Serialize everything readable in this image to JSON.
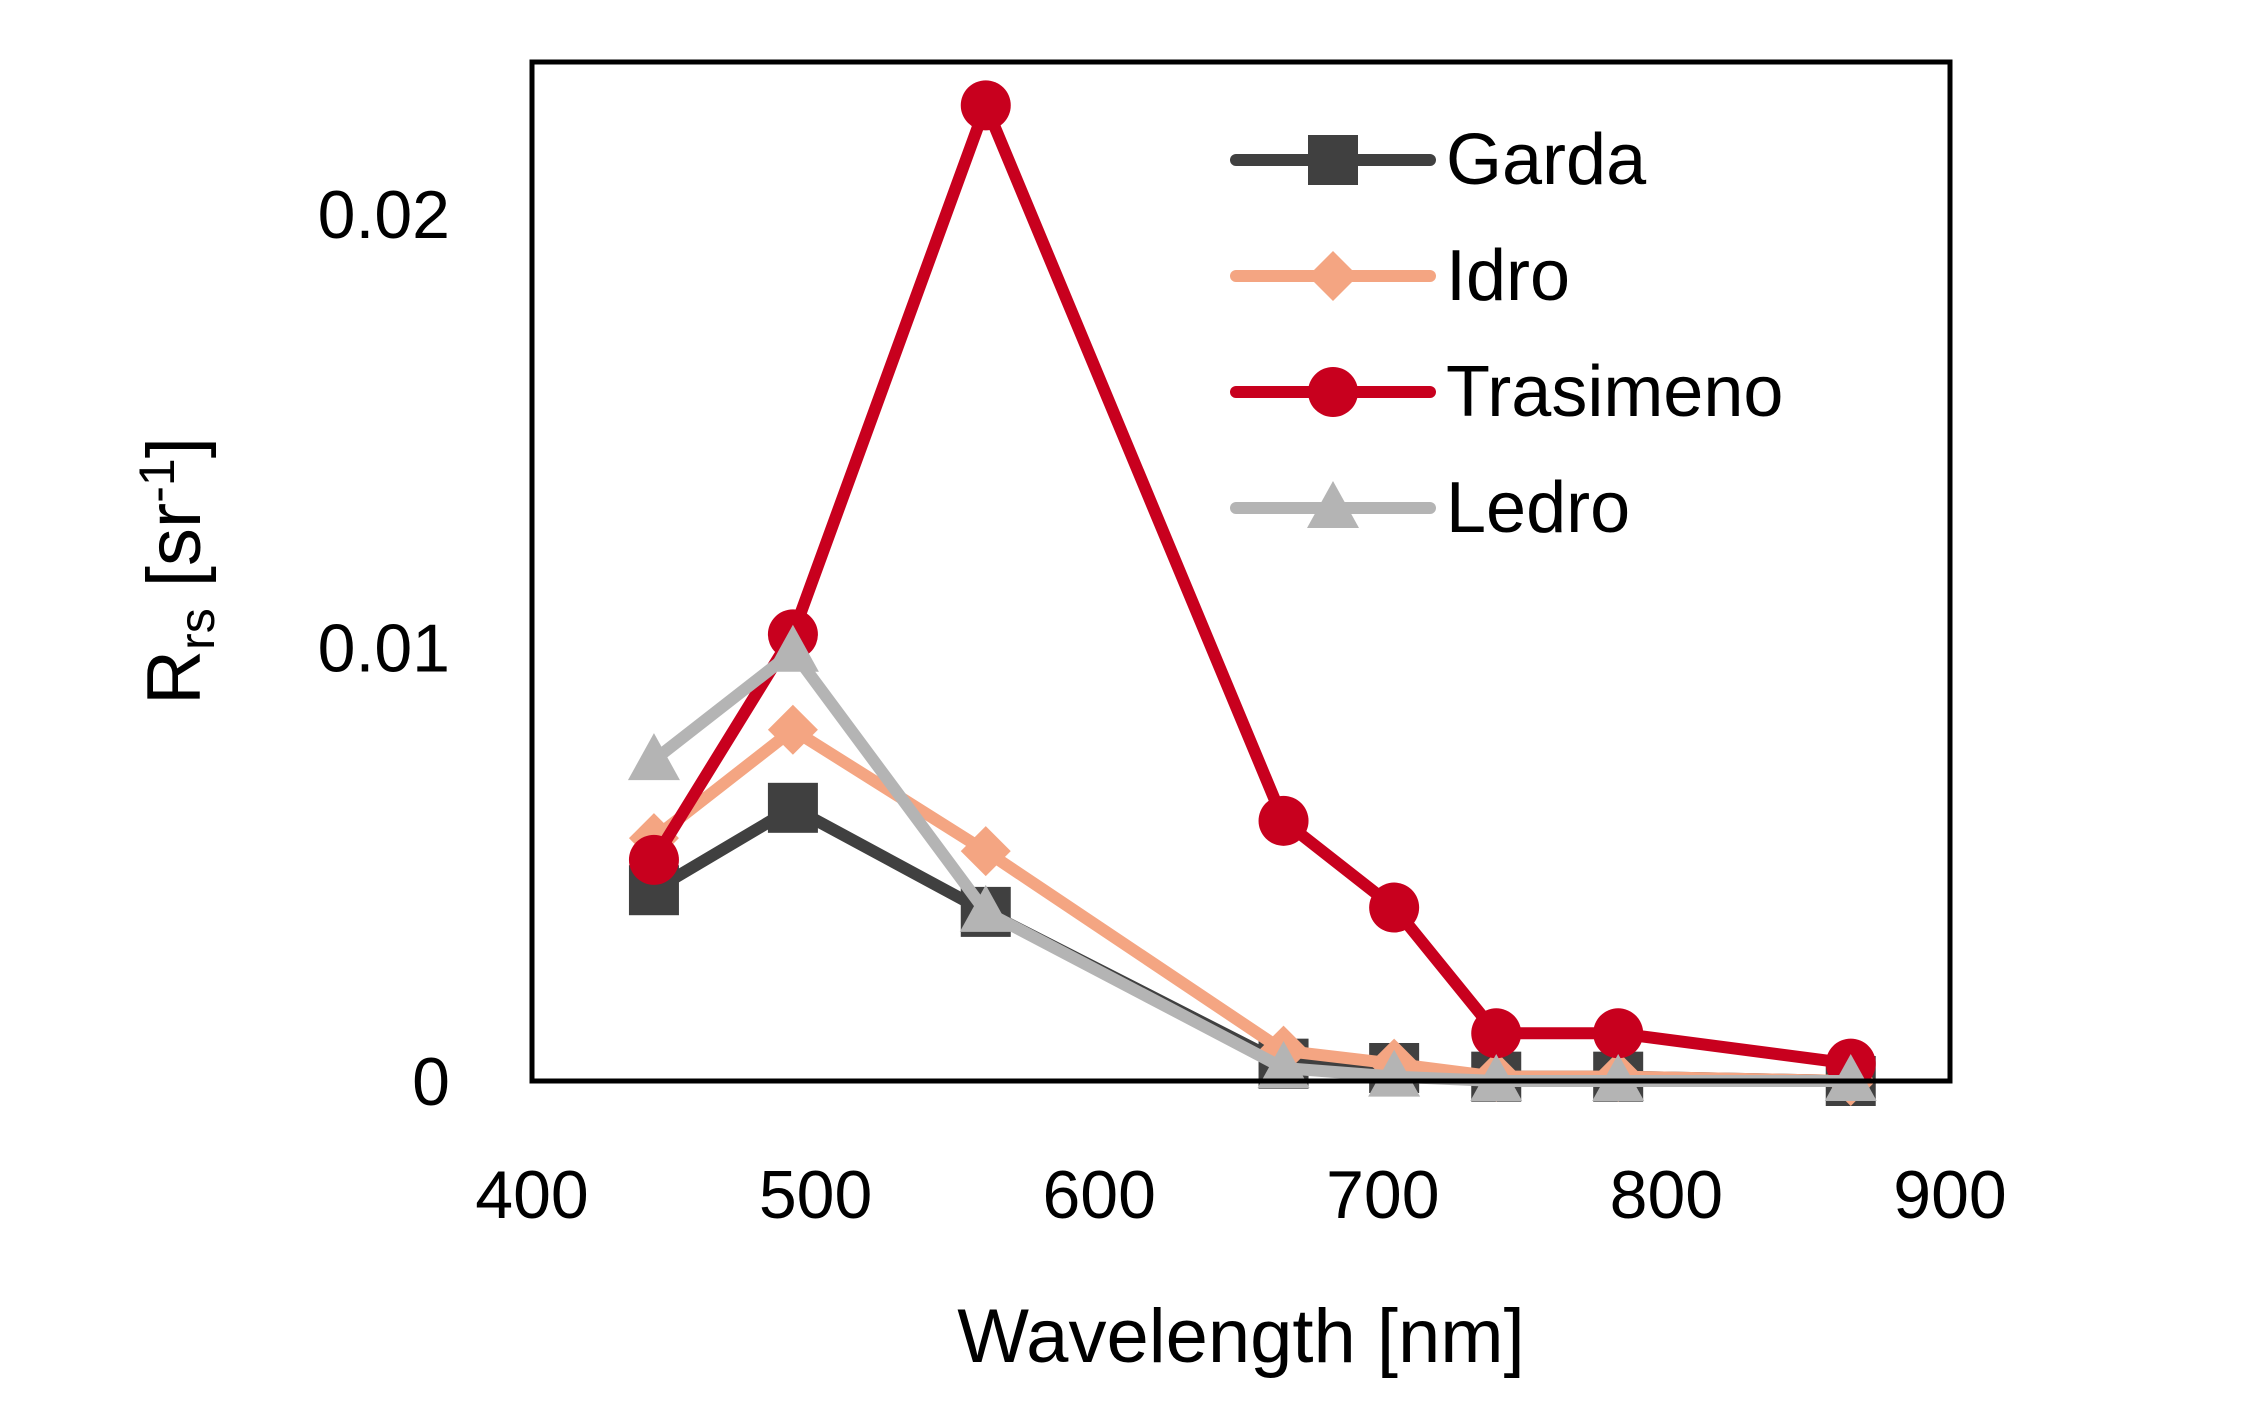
{
  "chart_data": {
    "type": "line",
    "xlabel": "Wavelength [nm]",
    "ylabel": {
      "main": "R",
      "sub": "rs",
      "unit_open": " [sr",
      "sup": "-1",
      "unit_close": "]"
    },
    "xlim": [
      400,
      900
    ],
    "ylim": [
      0,
      0.0235
    ],
    "x_ticks": [
      {
        "value": 400,
        "label": "400"
      },
      {
        "value": 500,
        "label": "500"
      },
      {
        "value": 600,
        "label": "600"
      },
      {
        "value": 700,
        "label": "700"
      },
      {
        "value": 800,
        "label": "800"
      },
      {
        "value": 900,
        "label": "900"
      }
    ],
    "y_ticks": [
      {
        "value": 0,
        "label": "0"
      },
      {
        "value": 0.01,
        "label": "0.01"
      },
      {
        "value": 0.02,
        "label": "0.02"
      }
    ],
    "grid": false,
    "legend_position": "top-right",
    "x": [
      443,
      492,
      560,
      665,
      704,
      740,
      783,
      865
    ],
    "series": [
      {
        "name": "Garda",
        "color": "#404040",
        "marker": "square",
        "values": [
          0.0044,
          0.0063,
          0.0039,
          0.0004,
          0.0003,
          0.0001,
          0.0001,
          0.0
        ]
      },
      {
        "name": "Idro",
        "color": "#F4A582",
        "marker": "diamond",
        "values": [
          0.0056,
          0.0081,
          0.0053,
          0.0007,
          0.0004,
          0.0001,
          0.0001,
          0.0
        ]
      },
      {
        "name": "Trasimeno",
        "color": "#C8001E",
        "marker": "circle",
        "values": [
          0.0051,
          0.0103,
          0.0225,
          0.006,
          0.004,
          0.0011,
          0.0011,
          0.0004
        ]
      },
      {
        "name": "Ledro",
        "color": "#B4B4B4",
        "marker": "triangle",
        "values": [
          0.0074,
          0.0099,
          0.0039,
          0.0003,
          0.0001,
          0.0,
          0.0,
          0.0
        ]
      }
    ]
  }
}
